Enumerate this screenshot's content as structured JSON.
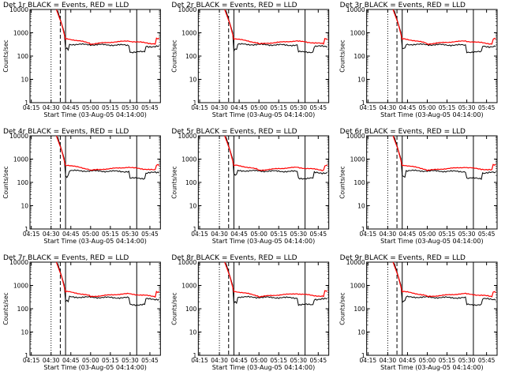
{
  "chart_data": [
    {
      "type": "line",
      "title": "Det 1r BLACK = Events, RED = LLD",
      "xlabel": "Start Time (03-Aug-05 04:14:00)",
      "ylabel": "Counts/sec",
      "log_y": true,
      "ylim": [
        1,
        10000
      ],
      "xlim": [
        "04:14",
        "05:53"
      ],
      "x_tick_labels": [
        "04:15",
        "04:30",
        "04:45",
        "05:00",
        "05:15",
        "05:30",
        "05:45"
      ],
      "y_tick_labels": [
        "1",
        "10",
        "100",
        "1000",
        "10000"
      ],
      "vlines": [
        {
          "x": "04:30",
          "style": "dotted"
        },
        {
          "x": "04:37",
          "style": "dashed"
        },
        {
          "x": "04:41",
          "style": "solid"
        },
        {
          "x": "05:35",
          "style": "solid"
        }
      ],
      "series": [
        {
          "name": "BLACK = Events",
          "color": "#000000",
          "values": []
        },
        {
          "name": "RED = LLD",
          "color": "#ff0000",
          "values": []
        }
      ]
    },
    {
      "type": "line",
      "title": "Det 2r BLACK = Events, RED = LLD",
      "xlabel": "Start Time (03-Aug-05 04:14:00)",
      "ylabel": "Counts/sec",
      "log_y": true,
      "ylim": [
        1,
        10000
      ],
      "xlim": [
        "04:14",
        "05:53"
      ],
      "x_tick_labels": [
        "04:15",
        "04:30",
        "04:45",
        "05:00",
        "05:15",
        "05:30",
        "05:45"
      ],
      "y_tick_labels": [
        "1",
        "10",
        "100",
        "1000",
        "10000"
      ],
      "vlines": [
        {
          "x": "04:30",
          "style": "dotted"
        },
        {
          "x": "04:37",
          "style": "dashed"
        },
        {
          "x": "04:41",
          "style": "solid"
        },
        {
          "x": "05:35",
          "style": "solid"
        }
      ],
      "series": [
        {
          "name": "BLACK = Events",
          "color": "#000000",
          "values": []
        },
        {
          "name": "RED = LLD",
          "color": "#ff0000",
          "values": []
        }
      ]
    },
    {
      "type": "line",
      "title": "Det 3r BLACK = Events, RED = LLD",
      "xlabel": "Start Time (03-Aug-05 04:14:00)",
      "ylabel": "Counts/sec",
      "log_y": true,
      "ylim": [
        1,
        10000
      ],
      "xlim": [
        "04:14",
        "05:53"
      ],
      "x_tick_labels": [
        "04:15",
        "04:30",
        "04:45",
        "05:00",
        "05:15",
        "05:30",
        "05:45"
      ],
      "y_tick_labels": [
        "1",
        "10",
        "100",
        "1000",
        "10000"
      ],
      "vlines": [
        {
          "x": "04:30",
          "style": "dotted"
        },
        {
          "x": "04:37",
          "style": "dashed"
        },
        {
          "x": "04:41",
          "style": "solid"
        },
        {
          "x": "05:35",
          "style": "solid"
        }
      ],
      "series": [
        {
          "name": "BLACK = Events",
          "color": "#000000",
          "values": []
        },
        {
          "name": "RED = LLD",
          "color": "#ff0000",
          "values": []
        }
      ]
    },
    {
      "type": "line",
      "title": "Det 4r BLACK = Events, RED = LLD",
      "xlabel": "Start Time (03-Aug-05 04:14:00)",
      "ylabel": "Counts/sec",
      "log_y": true,
      "ylim": [
        1,
        10000
      ],
      "xlim": [
        "04:14",
        "05:53"
      ],
      "x_tick_labels": [
        "04:15",
        "04:30",
        "04:45",
        "05:00",
        "05:15",
        "05:30",
        "05:45"
      ],
      "y_tick_labels": [
        "1",
        "10",
        "100",
        "1000",
        "10000"
      ],
      "vlines": [
        {
          "x": "04:30",
          "style": "dotted"
        },
        {
          "x": "04:37",
          "style": "dashed"
        },
        {
          "x": "04:41",
          "style": "solid"
        },
        {
          "x": "05:35",
          "style": "solid"
        }
      ],
      "series": [
        {
          "name": "BLACK = Events",
          "color": "#000000",
          "values": []
        },
        {
          "name": "RED = LLD",
          "color": "#ff0000",
          "values": []
        }
      ]
    },
    {
      "type": "line",
      "title": "Det 5r BLACK = Events, RED = LLD",
      "xlabel": "Start Time (03-Aug-05 04:14:00)",
      "ylabel": "Counts/sec",
      "log_y": true,
      "ylim": [
        1,
        10000
      ],
      "xlim": [
        "04:14",
        "05:53"
      ],
      "x_tick_labels": [
        "04:15",
        "04:30",
        "04:45",
        "05:00",
        "05:15",
        "05:30",
        "05:45"
      ],
      "y_tick_labels": [
        "1",
        "10",
        "100",
        "1000",
        "10000"
      ],
      "vlines": [
        {
          "x": "04:30",
          "style": "dotted"
        },
        {
          "x": "04:37",
          "style": "dashed"
        },
        {
          "x": "04:41",
          "style": "solid"
        },
        {
          "x": "05:35",
          "style": "solid"
        }
      ],
      "series": [
        {
          "name": "BLACK = Events",
          "color": "#000000",
          "values": []
        },
        {
          "name": "RED = LLD",
          "color": "#ff0000",
          "values": []
        }
      ]
    },
    {
      "type": "line",
      "title": "Det 6r BLACK = Events, RED = LLD",
      "xlabel": "Start Time (03-Aug-05 04:14:00)",
      "ylabel": "Counts/sec",
      "log_y": true,
      "ylim": [
        1,
        10000
      ],
      "xlim": [
        "04:14",
        "05:53"
      ],
      "x_tick_labels": [
        "04:15",
        "04:30",
        "04:45",
        "05:00",
        "05:15",
        "05:30",
        "05:45"
      ],
      "y_tick_labels": [
        "1",
        "10",
        "100",
        "1000",
        "10000"
      ],
      "vlines": [
        {
          "x": "04:30",
          "style": "dotted"
        },
        {
          "x": "04:37",
          "style": "dashed"
        },
        {
          "x": "04:41",
          "style": "solid"
        },
        {
          "x": "05:35",
          "style": "solid"
        }
      ],
      "series": [
        {
          "name": "BLACK = Events",
          "color": "#000000",
          "values": []
        },
        {
          "name": "RED = LLD",
          "color": "#ff0000",
          "values": []
        }
      ]
    },
    {
      "type": "line",
      "title": "Det 7r BLACK = Events, RED = LLD",
      "xlabel": "Start Time (03-Aug-05 04:14:00)",
      "ylabel": "Counts/sec",
      "log_y": true,
      "ylim": [
        1,
        10000
      ],
      "xlim": [
        "04:14",
        "05:53"
      ],
      "x_tick_labels": [
        "04:15",
        "04:30",
        "04:45",
        "05:00",
        "05:15",
        "05:30",
        "05:45"
      ],
      "y_tick_labels": [
        "1",
        "10",
        "100",
        "1000",
        "10000"
      ],
      "vlines": [
        {
          "x": "04:30",
          "style": "dotted"
        },
        {
          "x": "04:37",
          "style": "dashed"
        },
        {
          "x": "04:41",
          "style": "solid"
        },
        {
          "x": "05:35",
          "style": "solid"
        }
      ],
      "series": [
        {
          "name": "BLACK = Events",
          "color": "#000000",
          "values": []
        },
        {
          "name": "RED = LLD",
          "color": "#ff0000",
          "values": []
        }
      ]
    },
    {
      "type": "line",
      "title": "Det 8r BLACK = Events, RED = LLD",
      "xlabel": "Start Time (03-Aug-05 04:14:00)",
      "ylabel": "Counts/sec",
      "log_y": true,
      "ylim": [
        1,
        10000
      ],
      "xlim": [
        "04:14",
        "05:53"
      ],
      "x_tick_labels": [
        "04:15",
        "04:30",
        "04:45",
        "05:00",
        "05:15",
        "05:30",
        "05:45"
      ],
      "y_tick_labels": [
        "1",
        "10",
        "100",
        "1000",
        "10000"
      ],
      "vlines": [
        {
          "x": "04:30",
          "style": "dotted"
        },
        {
          "x": "04:37",
          "style": "dashed"
        },
        {
          "x": "04:41",
          "style": "solid"
        },
        {
          "x": "05:35",
          "style": "solid"
        }
      ],
      "series": [
        {
          "name": "BLACK = Events",
          "color": "#000000",
          "values": []
        },
        {
          "name": "RED = LLD",
          "color": "#ff0000",
          "values": []
        }
      ]
    },
    {
      "type": "line",
      "title": "Det 9r BLACK = Events, RED = LLD",
      "xlabel": "Start Time (03-Aug-05 04:14:00)",
      "ylabel": "Counts/sec",
      "log_y": true,
      "ylim": [
        1,
        10000
      ],
      "xlim": [
        "04:14",
        "05:53"
      ],
      "x_tick_labels": [
        "04:15",
        "04:30",
        "04:45",
        "05:00",
        "05:15",
        "05:30",
        "05:45"
      ],
      "y_tick_labels": [
        "1",
        "10",
        "100",
        "1000",
        "10000"
      ],
      "vlines": [
        {
          "x": "04:30",
          "style": "dotted"
        },
        {
          "x": "04:37",
          "style": "dashed"
        },
        {
          "x": "04:41",
          "style": "solid"
        },
        {
          "x": "05:35",
          "style": "solid"
        }
      ],
      "series": [
        {
          "name": "BLACK = Events",
          "color": "#000000",
          "values": []
        },
        {
          "name": "RED = LLD",
          "color": "#ff0000",
          "values": []
        }
      ]
    }
  ],
  "colors": {
    "events": "#000000",
    "lld": "#ff0000",
    "background": "#ffffff"
  }
}
